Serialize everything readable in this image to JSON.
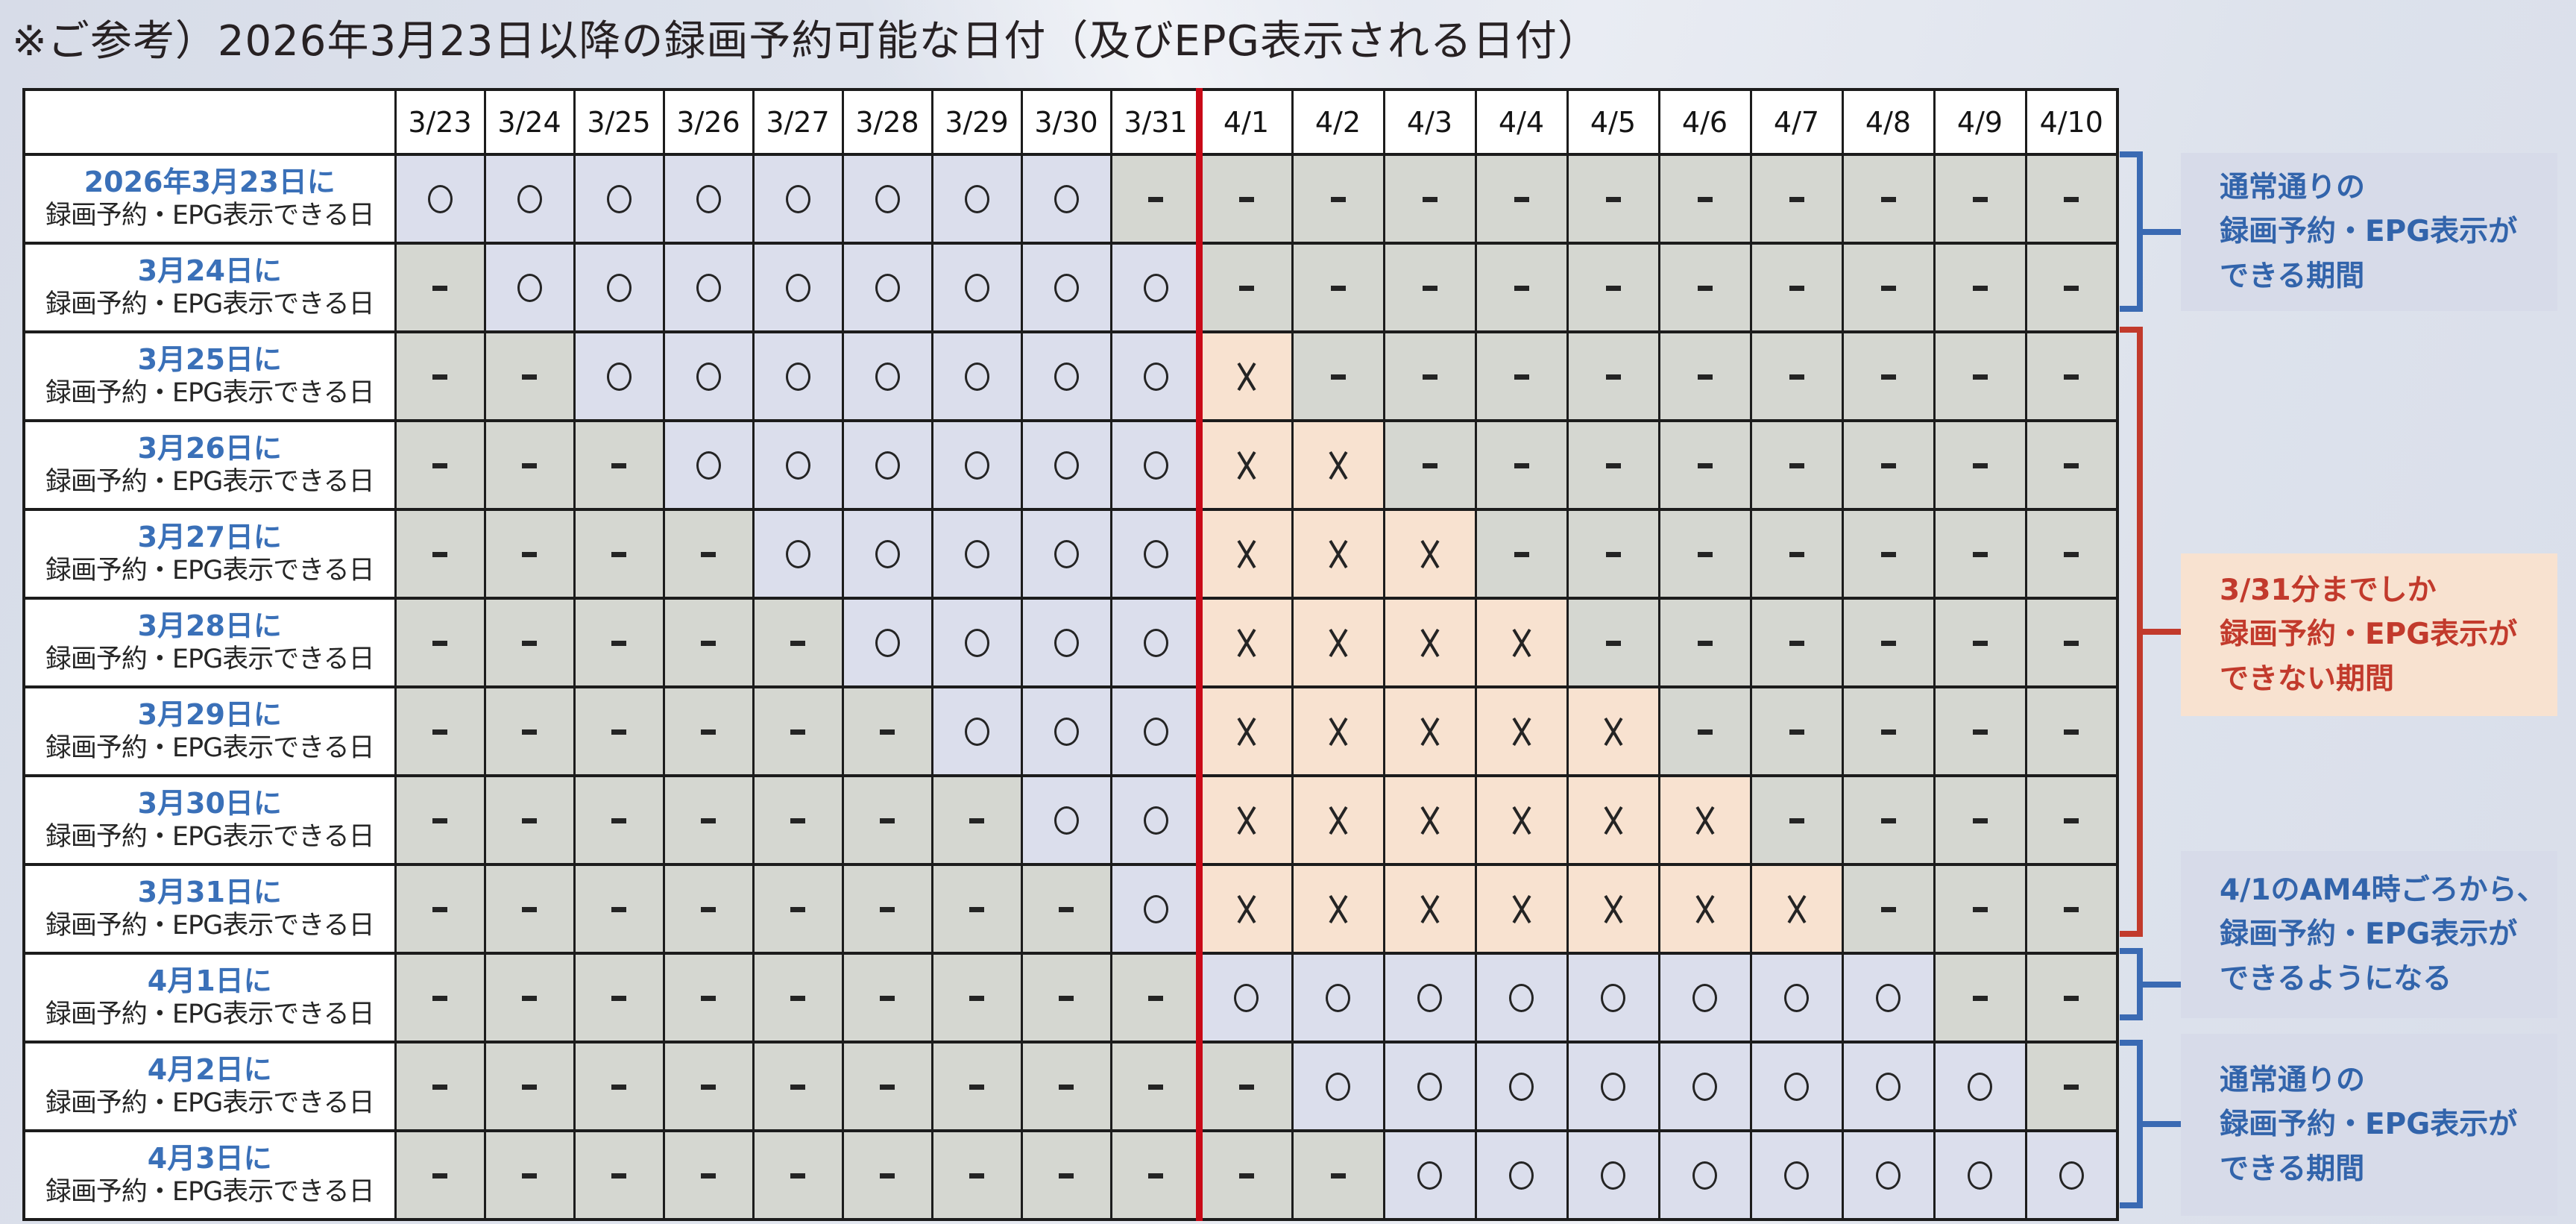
{
  "title": "※ご参考）2026年3月23日以降の録画予約可能な日付（及びEPG表示される日付）",
  "colors": {
    "available_cell": "#dbdeec",
    "not_applicable_cell": "#d5d7d1",
    "unavailable_cell": "#f8e2d0",
    "divider_line": "#c90a18",
    "blue_accent": "#3a6ab3",
    "red_accent": "#c23a2c"
  },
  "symbols": {
    "available": "○",
    "unavailable": "✕",
    "not_applicable": "-"
  },
  "table": {
    "corner_header": "",
    "date_headers": [
      "3/23",
      "3/24",
      "3/25",
      "3/26",
      "3/27",
      "3/28",
      "3/29",
      "3/30",
      "3/31",
      "4/1",
      "4/2",
      "4/3",
      "4/4",
      "4/5",
      "4/6",
      "4/7",
      "4/8",
      "4/9",
      "4/10"
    ],
    "rows": [
      {
        "label_date": "2026年3月23日に",
        "label_text": "録画予約・EPG表示できる日",
        "cells": [
          "○",
          "○",
          "○",
          "○",
          "○",
          "○",
          "○",
          "○",
          "-",
          "-",
          "-",
          "-",
          "-",
          "-",
          "-",
          "-",
          "-",
          "-",
          "-"
        ]
      },
      {
        "label_date": "3月24日に",
        "label_text": "録画予約・EPG表示できる日",
        "cells": [
          "-",
          "○",
          "○",
          "○",
          "○",
          "○",
          "○",
          "○",
          "○",
          "-",
          "-",
          "-",
          "-",
          "-",
          "-",
          "-",
          "-",
          "-",
          "-"
        ]
      },
      {
        "label_date": "3月25日に",
        "label_text": "録画予約・EPG表示できる日",
        "cells": [
          "-",
          "-",
          "○",
          "○",
          "○",
          "○",
          "○",
          "○",
          "○",
          "✕",
          "-",
          "-",
          "-",
          "-",
          "-",
          "-",
          "-",
          "-",
          "-"
        ]
      },
      {
        "label_date": "3月26日に",
        "label_text": "録画予約・EPG表示できる日",
        "cells": [
          "-",
          "-",
          "-",
          "○",
          "○",
          "○",
          "○",
          "○",
          "○",
          "✕",
          "✕",
          "-",
          "-",
          "-",
          "-",
          "-",
          "-",
          "-",
          "-"
        ]
      },
      {
        "label_date": "3月27日に",
        "label_text": "録画予約・EPG表示できる日",
        "cells": [
          "-",
          "-",
          "-",
          "-",
          "○",
          "○",
          "○",
          "○",
          "○",
          "✕",
          "✕",
          "✕",
          "-",
          "-",
          "-",
          "-",
          "-",
          "-",
          "-"
        ]
      },
      {
        "label_date": "3月28日に",
        "label_text": "録画予約・EPG表示できる日",
        "cells": [
          "-",
          "-",
          "-",
          "-",
          "-",
          "○",
          "○",
          "○",
          "○",
          "✕",
          "✕",
          "✕",
          "✕",
          "-",
          "-",
          "-",
          "-",
          "-",
          "-"
        ]
      },
      {
        "label_date": "3月29日に",
        "label_text": "録画予約・EPG表示できる日",
        "cells": [
          "-",
          "-",
          "-",
          "-",
          "-",
          "-",
          "○",
          "○",
          "○",
          "✕",
          "✕",
          "✕",
          "✕",
          "✕",
          "-",
          "-",
          "-",
          "-",
          "-"
        ]
      },
      {
        "label_date": "3月30日に",
        "label_text": "録画予約・EPG表示できる日",
        "cells": [
          "-",
          "-",
          "-",
          "-",
          "-",
          "-",
          "-",
          "○",
          "○",
          "✕",
          "✕",
          "✕",
          "✕",
          "✕",
          "✕",
          "-",
          "-",
          "-",
          "-"
        ]
      },
      {
        "label_date": "3月31日に",
        "label_text": "録画予約・EPG表示できる日",
        "cells": [
          "-",
          "-",
          "-",
          "-",
          "-",
          "-",
          "-",
          "-",
          "○",
          "✕",
          "✕",
          "✕",
          "✕",
          "✕",
          "✕",
          "✕",
          "-",
          "-",
          "-"
        ]
      },
      {
        "label_date": "4月1日に",
        "label_text": "録画予約・EPG表示できる日",
        "cells": [
          "-",
          "-",
          "-",
          "-",
          "-",
          "-",
          "-",
          "-",
          "-",
          "○",
          "○",
          "○",
          "○",
          "○",
          "○",
          "○",
          "○",
          "-",
          "-"
        ]
      },
      {
        "label_date": "4月2日に",
        "label_text": "録画予約・EPG表示できる日",
        "cells": [
          "-",
          "-",
          "-",
          "-",
          "-",
          "-",
          "-",
          "-",
          "-",
          "-",
          "○",
          "○",
          "○",
          "○",
          "○",
          "○",
          "○",
          "○",
          "-"
        ]
      },
      {
        "label_date": "4月3日に",
        "label_text": "録画予約・EPG表示できる日",
        "cells": [
          "-",
          "-",
          "-",
          "-",
          "-",
          "-",
          "-",
          "-",
          "-",
          "-",
          "-",
          "○",
          "○",
          "○",
          "○",
          "○",
          "○",
          "○",
          "○"
        ]
      }
    ]
  },
  "divider": {
    "between_columns": "3/31 and 4/1"
  },
  "annotations": [
    {
      "tone": "blue",
      "lines": [
        "通常通りの",
        "録画予約・EPG表示が",
        "できる期間"
      ]
    },
    {
      "tone": "red",
      "lines": [
        "3/31分までしか",
        "録画予約・EPG表示が",
        "できない期間"
      ]
    },
    {
      "tone": "blue",
      "lines": [
        "4/1のAM4時ごろから、",
        "録画予約・EPG表示が",
        "できるようになる"
      ]
    },
    {
      "tone": "blue",
      "lines": [
        "通常通りの",
        "録画予約・EPG表示が",
        "できる期間"
      ]
    }
  ]
}
